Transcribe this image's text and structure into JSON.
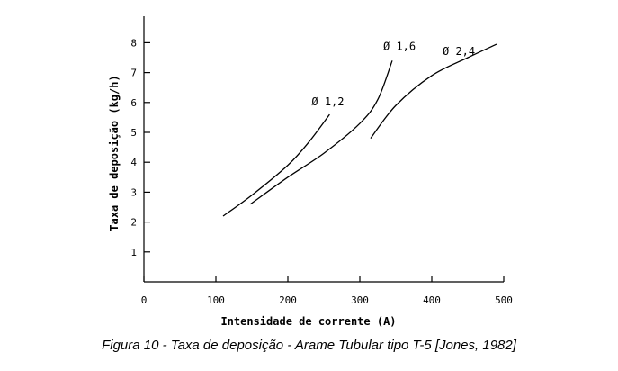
{
  "caption": "Figura 10 - Taxa de deposição - Arame Tubular tipo T-5 [Jones, 1982]",
  "chart_data": {
    "type": "line",
    "title": "",
    "xlabel": "Intensidade de corrente (A)",
    "ylabel": "Taxa de deposição (kg/h)",
    "xlim": [
      0,
      500
    ],
    "ylim": [
      0,
      8.5
    ],
    "x_ticks": [
      0,
      100,
      200,
      300,
      400,
      500
    ],
    "y_ticks": [
      1,
      2,
      3,
      4,
      5,
      6,
      7,
      8
    ],
    "grid": false,
    "series": [
      {
        "name": "Ø 1,2",
        "points": [
          [
            110,
            2.2
          ],
          [
            150,
            2.9
          ],
          [
            200,
            3.9
          ],
          [
            230,
            4.7
          ],
          [
            258,
            5.6
          ]
        ]
      },
      {
        "name": "Ø 1,6",
        "points": [
          [
            148,
            2.6
          ],
          [
            200,
            3.5
          ],
          [
            250,
            4.3
          ],
          [
            300,
            5.3
          ],
          [
            325,
            6.1
          ],
          [
            345,
            7.4
          ]
        ]
      },
      {
        "name": "Ø 2,4",
        "points": [
          [
            315,
            4.8
          ],
          [
            350,
            5.9
          ],
          [
            400,
            6.9
          ],
          [
            450,
            7.5
          ],
          [
            490,
            7.95
          ]
        ]
      }
    ]
  }
}
